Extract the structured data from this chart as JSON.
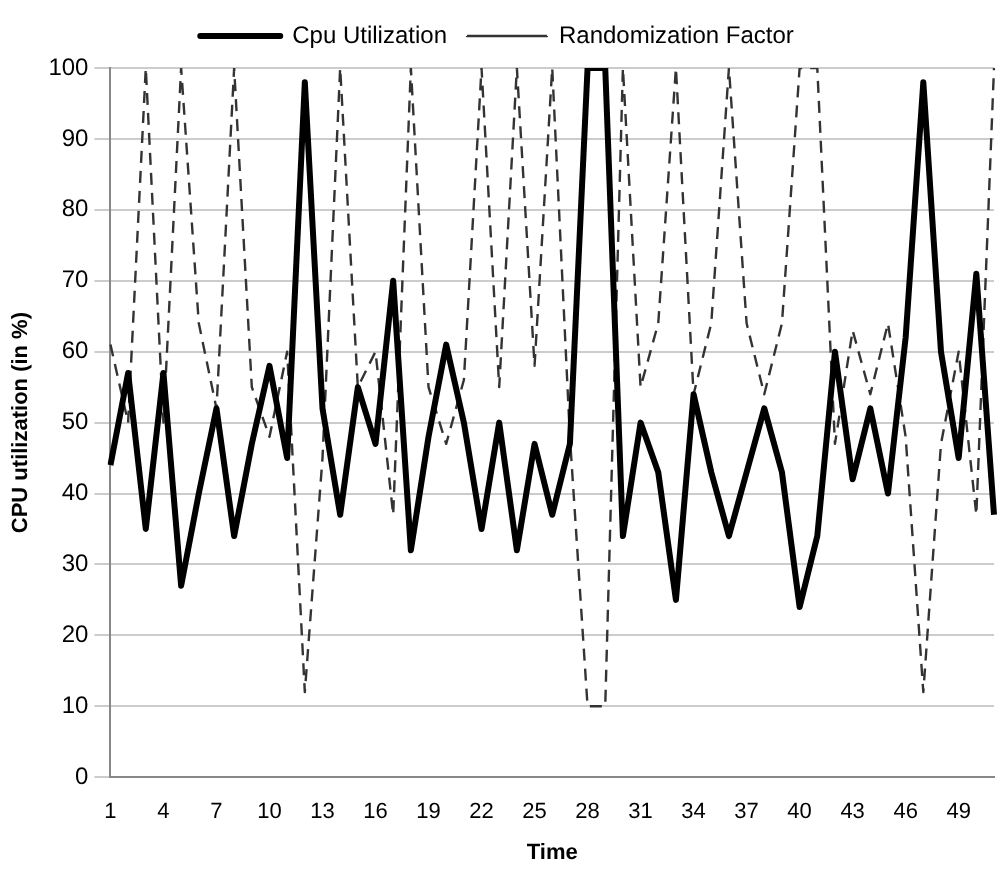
{
  "chart_data": {
    "type": "line",
    "xlabel": "Time",
    "ylabel": "CPU utilization (in %)",
    "categories": [
      "1",
      null,
      null,
      "4",
      null,
      null,
      "7",
      null,
      null,
      "10",
      null,
      null,
      "13",
      null,
      null,
      "16",
      null,
      null,
      "19",
      null,
      null,
      "22",
      null,
      null,
      "25",
      null,
      null,
      "28",
      null,
      null,
      "31",
      null,
      null,
      "34",
      null,
      null,
      "37",
      null,
      null,
      "40",
      null,
      null,
      "43",
      null,
      null,
      "46",
      null,
      null,
      "49",
      null,
      null
    ],
    "series": [
      {
        "name": "Cpu Utilization",
        "color": "#000000",
        "line_style": "solid",
        "values": [
          44,
          57,
          35,
          57,
          27,
          40,
          52,
          34,
          47,
          58,
          45,
          98,
          52,
          37,
          55,
          47,
          70,
          32,
          48,
          61,
          50,
          35,
          50,
          32,
          47,
          37,
          47,
          100,
          100,
          34,
          50,
          43,
          25,
          54,
          43,
          34,
          43,
          52,
          43,
          24,
          34,
          60,
          42,
          52,
          40,
          62,
          98,
          60,
          45,
          71,
          37
        ]
      },
      {
        "name": "Randomization Factor",
        "color": "#333333",
        "line_style": "dashed",
        "values": [
          61,
          50,
          100,
          50,
          100,
          64,
          52,
          100,
          55,
          48,
          60,
          12,
          45,
          100,
          55,
          60,
          37,
          100,
          55,
          47,
          56,
          100,
          55,
          100,
          58,
          100,
          48,
          10,
          10,
          100,
          55,
          64,
          100,
          54,
          64,
          100,
          64,
          54,
          64,
          100,
          100,
          47,
          63,
          54,
          64,
          48,
          12,
          47,
          60,
          37,
          100
        ]
      }
    ],
    "ylim": [
      0,
      100
    ],
    "yticks": [
      0,
      10,
      20,
      30,
      40,
      50,
      60,
      70,
      80,
      90,
      100
    ],
    "grid": "y",
    "legend": "top",
    "marker": "none"
  }
}
